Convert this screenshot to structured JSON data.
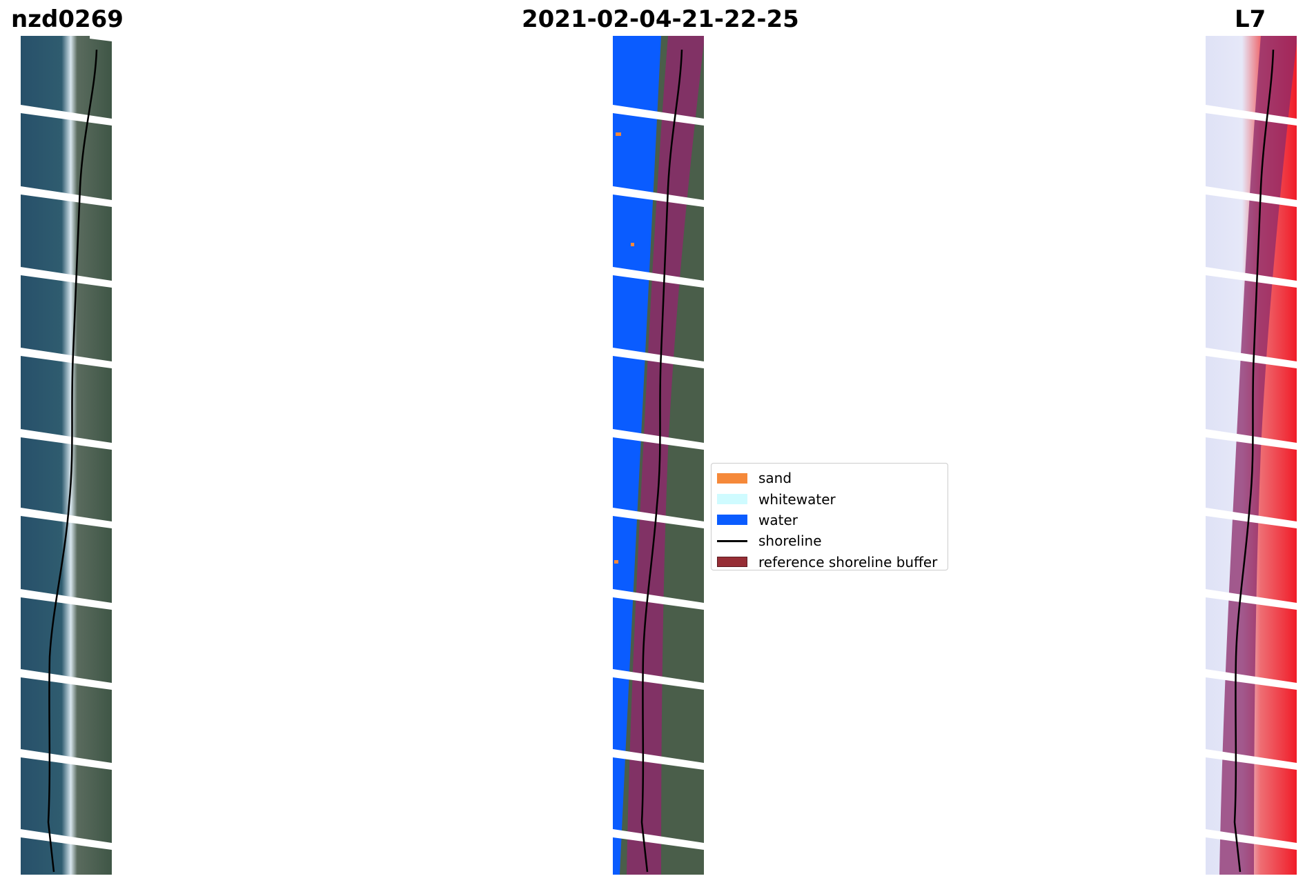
{
  "titles": {
    "left": "nzd0269",
    "middle": "2021-02-04-21-22-25",
    "right": "L7"
  },
  "legend": {
    "items": [
      {
        "label": "sand",
        "kind": "patch",
        "color": "#f5893a"
      },
      {
        "label": "whitewater",
        "kind": "patch",
        "color": "#cffbff"
      },
      {
        "label": "water",
        "kind": "patch",
        "color": "#0a5cff"
      },
      {
        "label": "shoreline",
        "kind": "line",
        "color": "#000000"
      },
      {
        "label": "reference shoreline buffer",
        "kind": "patch",
        "color": "#962d35"
      }
    ]
  },
  "colors": {
    "sea": "#2d5a6e",
    "land": "#4a5e4a",
    "surf": "#e8f0f4",
    "water_class": "#0a5cff",
    "buffer": "#8b2a6a",
    "ndwi_water": "#d8dcf4",
    "ndwi_land": "#e8202c",
    "shoreline": "#000000"
  }
}
